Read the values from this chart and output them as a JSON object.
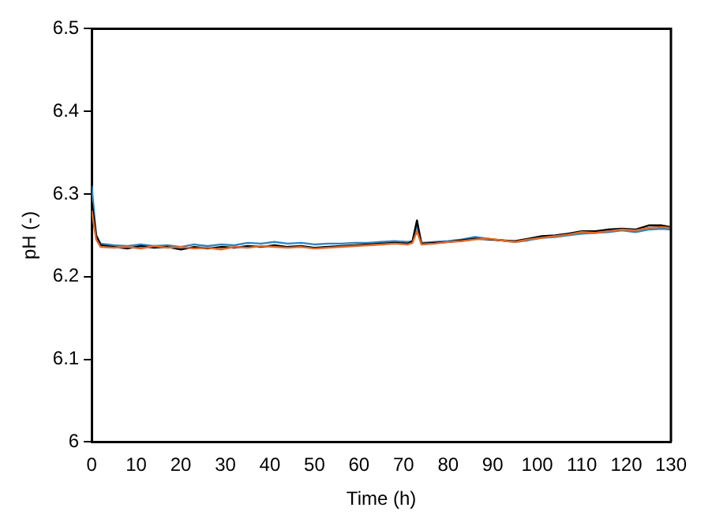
{
  "chart_data": {
    "type": "line",
    "xlabel": "Time (h)",
    "ylabel": "pH (-)",
    "x": [
      0,
      1,
      2,
      5,
      8,
      11,
      14,
      17,
      20,
      23,
      26,
      29,
      32,
      35,
      38,
      41,
      44,
      47,
      50,
      53,
      56,
      59,
      62,
      65,
      68,
      71,
      72,
      73,
      74,
      77,
      80,
      83,
      86,
      89,
      92,
      95,
      98,
      101,
      104,
      107,
      110,
      113,
      116,
      119,
      122,
      125,
      128,
      130
    ],
    "series": [
      {
        "color": "#2e86c1",
        "values": [
          6.31,
          6.25,
          6.24,
          6.238,
          6.237,
          6.239,
          6.237,
          6.238,
          6.236,
          6.239,
          6.237,
          6.239,
          6.238,
          6.241,
          6.24,
          6.242,
          6.24,
          6.241,
          6.239,
          6.24,
          6.24,
          6.241,
          6.241,
          6.242,
          6.243,
          6.242,
          6.243,
          6.262,
          6.241,
          6.242,
          6.243,
          6.245,
          6.248,
          6.246,
          6.244,
          6.242,
          6.244,
          6.247,
          6.248,
          6.25,
          6.252,
          6.253,
          6.254,
          6.256,
          6.254,
          6.257,
          6.258,
          6.257
        ]
      },
      {
        "color": "#000000",
        "values": [
          6.29,
          6.25,
          6.238,
          6.236,
          6.234,
          6.237,
          6.235,
          6.236,
          6.233,
          6.236,
          6.234,
          6.236,
          6.235,
          6.237,
          6.236,
          6.238,
          6.236,
          6.237,
          6.235,
          6.236,
          6.237,
          6.238,
          6.239,
          6.24,
          6.241,
          6.24,
          6.243,
          6.268,
          6.24,
          6.241,
          6.242,
          6.244,
          6.246,
          6.245,
          6.244,
          6.243,
          6.246,
          6.249,
          6.25,
          6.252,
          6.255,
          6.255,
          6.257,
          6.258,
          6.257,
          6.262,
          6.262,
          6.26
        ]
      },
      {
        "color": "#e06a2a",
        "values": [
          6.28,
          6.245,
          6.236,
          6.235,
          6.236,
          6.234,
          6.237,
          6.235,
          6.236,
          6.234,
          6.235,
          6.233,
          6.236,
          6.235,
          6.237,
          6.236,
          6.235,
          6.236,
          6.234,
          6.235,
          6.236,
          6.237,
          6.238,
          6.239,
          6.24,
          6.239,
          6.241,
          6.255,
          6.239,
          6.24,
          6.242,
          6.243,
          6.245,
          6.246,
          6.244,
          6.242,
          6.245,
          6.247,
          6.249,
          6.251,
          6.254,
          6.253,
          6.255,
          6.257,
          6.256,
          6.259,
          6.26,
          6.259
        ]
      }
    ],
    "xlim": [
      0,
      130
    ],
    "xticks": [
      0,
      10,
      20,
      30,
      40,
      50,
      60,
      70,
      80,
      90,
      100,
      110,
      120,
      130
    ],
    "ylim": [
      6,
      6.5
    ],
    "yticks": [
      6,
      6.1,
      6.2,
      6.3,
      6.4,
      6.5
    ],
    "grid": false,
    "legend": false,
    "marker": "none",
    "line_style": "solid"
  }
}
